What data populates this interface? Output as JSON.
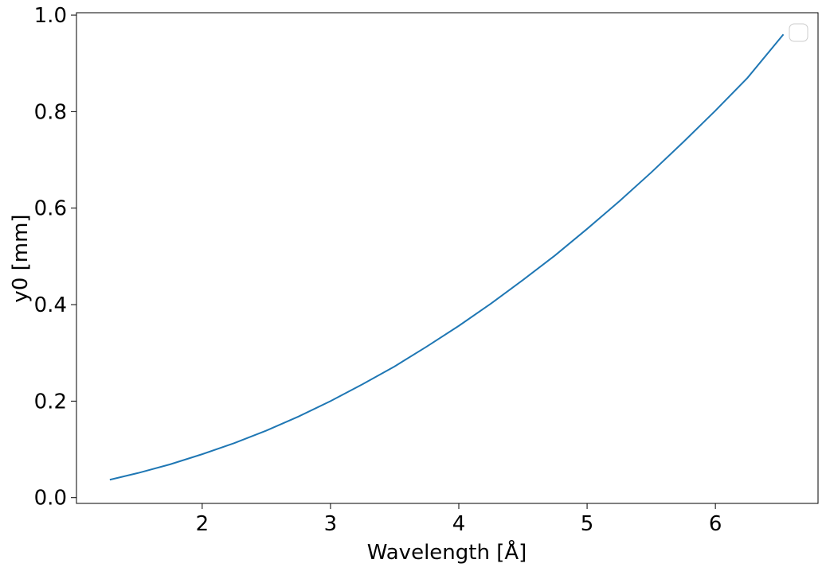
{
  "chart_data": {
    "type": "line",
    "title": "",
    "xlabel": "Wavelength [Å]",
    "ylabel": "y0 [mm]",
    "xlim": [
      1.02,
      6.8
    ],
    "ylim": [
      -0.012,
      1.005
    ],
    "xticks": [
      2,
      3,
      4,
      5,
      6
    ],
    "xtick_labels": [
      "2",
      "3",
      "4",
      "5",
      "6"
    ],
    "yticks": [
      0.0,
      0.2,
      0.4,
      0.6,
      0.8,
      1.0
    ],
    "ytick_labels": [
      "0.0",
      "0.2",
      "0.4",
      "0.6",
      "0.8",
      "1.0"
    ],
    "grid": false,
    "legend": {
      "placement": "upper right",
      "entries": []
    },
    "series": [
      {
        "color": "#1f77b4",
        "x": [
          1.28,
          1.5,
          1.75,
          2.0,
          2.25,
          2.5,
          2.75,
          3.0,
          3.25,
          3.5,
          3.75,
          4.0,
          4.25,
          4.5,
          4.75,
          5.0,
          5.25,
          5.5,
          5.75,
          6.0,
          6.25,
          6.53
        ],
        "y": [
          0.037,
          0.051,
          0.069,
          0.09,
          0.113,
          0.139,
          0.168,
          0.2,
          0.235,
          0.272,
          0.313,
          0.356,
          0.402,
          0.451,
          0.502,
          0.557,
          0.614,
          0.674,
          0.737,
          0.802,
          0.87,
          0.96
        ]
      }
    ]
  }
}
